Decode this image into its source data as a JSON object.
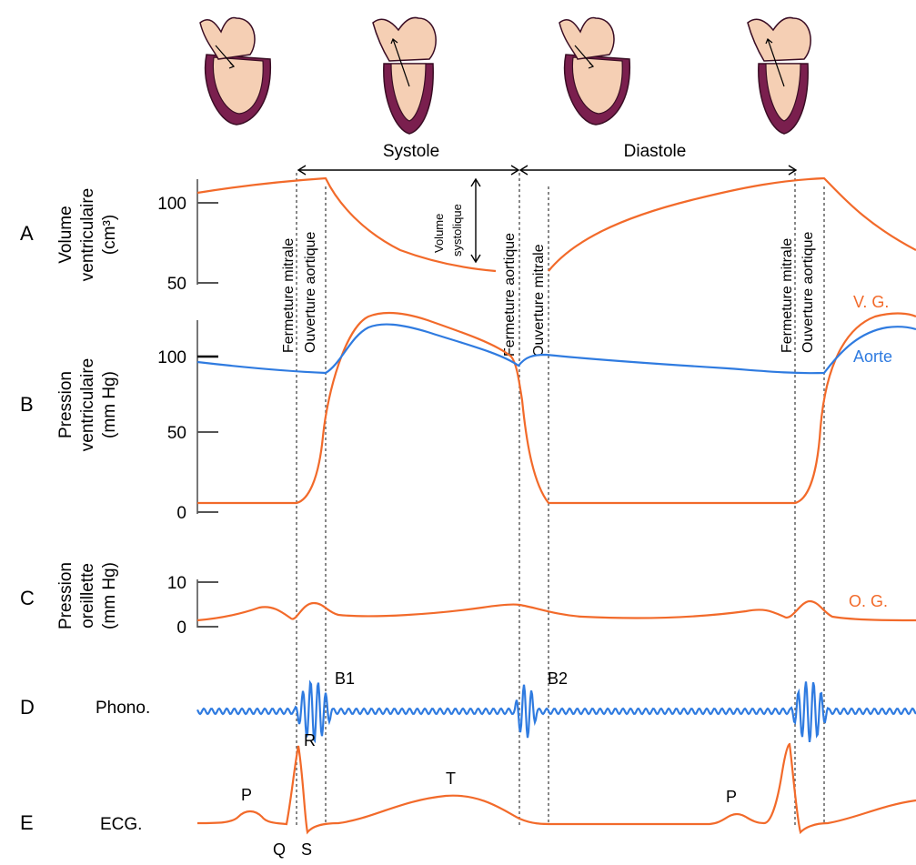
{
  "phases": {
    "systole": "Systole",
    "diastole": "Diastole"
  },
  "panels": [
    {
      "letter": "A",
      "title_lines": [
        "Volume",
        "ventriculaire",
        "(cm³)"
      ],
      "ticks": [
        "100",
        "50"
      ]
    },
    {
      "letter": "B",
      "title_lines": [
        "Pression",
        "ventriculaire",
        "(mm Hg)"
      ],
      "ticks": [
        "100",
        "50",
        "0"
      ]
    },
    {
      "letter": "C",
      "title_lines": [
        "Pression",
        "oreillette",
        "(mm Hg)"
      ],
      "ticks": [
        "10",
        "0"
      ]
    },
    {
      "letter": "D",
      "title_lines": [
        "Phono."
      ],
      "ticks": []
    },
    {
      "letter": "E",
      "title_lines": [
        "ECG."
      ],
      "ticks": []
    }
  ],
  "events": {
    "mitral_close": "Fermeture mitrale",
    "aortic_open": "Ouverture aortique",
    "aortic_close": "Fermeture aortique",
    "mitral_open": "Ouverture mitrale",
    "stroke_volume": [
      "Volume",
      "systolique"
    ]
  },
  "curve_labels": {
    "lv": "V. G.",
    "aorta": "Aorte",
    "la": "O. G."
  },
  "heart_sounds": {
    "b1": "B1",
    "b2": "B2"
  },
  "ecg_waves": {
    "p1": "P",
    "q": "Q",
    "r": "R",
    "s": "S",
    "t": "T",
    "p2": "P"
  },
  "colors": {
    "orange": "#f26a2a",
    "blue": "#2f7be0",
    "heart_flesh": "#f5cfb4",
    "heart_muscle": "#7a1f4e"
  },
  "heart_icons": [
    "heart-diastole-filling",
    "heart-systole-ejection",
    "heart-diastole-filling",
    "heart-systole-ejection"
  ]
}
